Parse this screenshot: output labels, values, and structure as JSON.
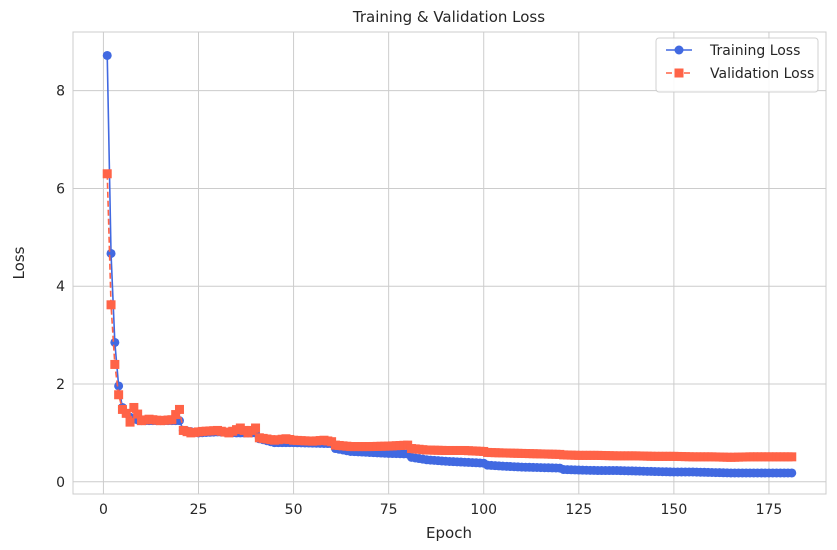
{
  "chart_data": {
    "type": "line",
    "title": "Training & Validation Loss",
    "xlabel": "Epoch",
    "ylabel": "Loss",
    "xlim": [
      -8,
      190
    ],
    "ylim": [
      -0.25,
      9.2
    ],
    "xticks": [
      0,
      25,
      50,
      75,
      100,
      125,
      150,
      175
    ],
    "yticks": [
      0,
      2,
      4,
      6,
      8
    ],
    "grid": true,
    "legend_position": "top-right",
    "series": [
      {
        "name": "Training Loss",
        "color": "#4169e1",
        "marker": "circle",
        "linestyle": "solid",
        "points": [
          [
            1,
            8.72
          ],
          [
            2,
            4.67
          ],
          [
            3,
            2.85
          ],
          [
            4,
            1.96
          ],
          [
            5,
            1.52
          ],
          [
            6,
            1.4
          ],
          [
            7,
            1.32
          ],
          [
            8,
            1.28
          ],
          [
            10,
            1.25
          ],
          [
            15,
            1.25
          ],
          [
            20,
            1.25
          ],
          [
            21,
            1.05
          ],
          [
            25,
            1.0
          ],
          [
            30,
            1.02
          ],
          [
            35,
            1.0
          ],
          [
            40,
            1.0
          ],
          [
            41,
            0.88
          ],
          [
            45,
            0.8
          ],
          [
            50,
            0.8
          ],
          [
            55,
            0.79
          ],
          [
            60,
            0.78
          ],
          [
            61,
            0.68
          ],
          [
            65,
            0.62
          ],
          [
            70,
            0.6
          ],
          [
            75,
            0.58
          ],
          [
            80,
            0.57
          ],
          [
            81,
            0.5
          ],
          [
            85,
            0.45
          ],
          [
            90,
            0.42
          ],
          [
            95,
            0.4
          ],
          [
            100,
            0.38
          ],
          [
            101,
            0.34
          ],
          [
            105,
            0.32
          ],
          [
            110,
            0.3
          ],
          [
            115,
            0.29
          ],
          [
            120,
            0.28
          ],
          [
            121,
            0.25
          ],
          [
            125,
            0.24
          ],
          [
            130,
            0.23
          ],
          [
            135,
            0.23
          ],
          [
            140,
            0.22
          ],
          [
            145,
            0.21
          ],
          [
            150,
            0.2
          ],
          [
            155,
            0.2
          ],
          [
            160,
            0.19
          ],
          [
            165,
            0.18
          ],
          [
            170,
            0.18
          ],
          [
            175,
            0.18
          ],
          [
            181,
            0.18
          ]
        ]
      },
      {
        "name": "Validation Loss",
        "color": "#ff6347",
        "marker": "square",
        "linestyle": "dashed",
        "points": [
          [
            1,
            6.3
          ],
          [
            2,
            3.62
          ],
          [
            3,
            2.4
          ],
          [
            4,
            1.78
          ],
          [
            5,
            1.48
          ],
          [
            6,
            1.4
          ],
          [
            7,
            1.22
          ],
          [
            8,
            1.52
          ],
          [
            10,
            1.25
          ],
          [
            12,
            1.28
          ],
          [
            15,
            1.25
          ],
          [
            18,
            1.27
          ],
          [
            20,
            1.48
          ],
          [
            21,
            1.05
          ],
          [
            23,
            1.0
          ],
          [
            26,
            1.03
          ],
          [
            30,
            1.05
          ],
          [
            33,
            1.0
          ],
          [
            36,
            1.1
          ],
          [
            38,
            1.0
          ],
          [
            40,
            1.1
          ],
          [
            41,
            0.9
          ],
          [
            45,
            0.85
          ],
          [
            48,
            0.88
          ],
          [
            50,
            0.85
          ],
          [
            55,
            0.83
          ],
          [
            58,
            0.85
          ],
          [
            60,
            0.82
          ],
          [
            61,
            0.75
          ],
          [
            65,
            0.72
          ],
          [
            70,
            0.72
          ],
          [
            75,
            0.73
          ],
          [
            80,
            0.75
          ],
          [
            81,
            0.68
          ],
          [
            85,
            0.65
          ],
          [
            90,
            0.64
          ],
          [
            95,
            0.64
          ],
          [
            100,
            0.62
          ],
          [
            101,
            0.6
          ],
          [
            105,
            0.59
          ],
          [
            110,
            0.58
          ],
          [
            115,
            0.57
          ],
          [
            120,
            0.56
          ],
          [
            121,
            0.55
          ],
          [
            125,
            0.54
          ],
          [
            130,
            0.54
          ],
          [
            135,
            0.53
          ],
          [
            140,
            0.53
          ],
          [
            145,
            0.52
          ],
          [
            150,
            0.52
          ],
          [
            155,
            0.51
          ],
          [
            160,
            0.51
          ],
          [
            165,
            0.5
          ],
          [
            170,
            0.51
          ],
          [
            175,
            0.51
          ],
          [
            181,
            0.51
          ]
        ]
      }
    ]
  }
}
